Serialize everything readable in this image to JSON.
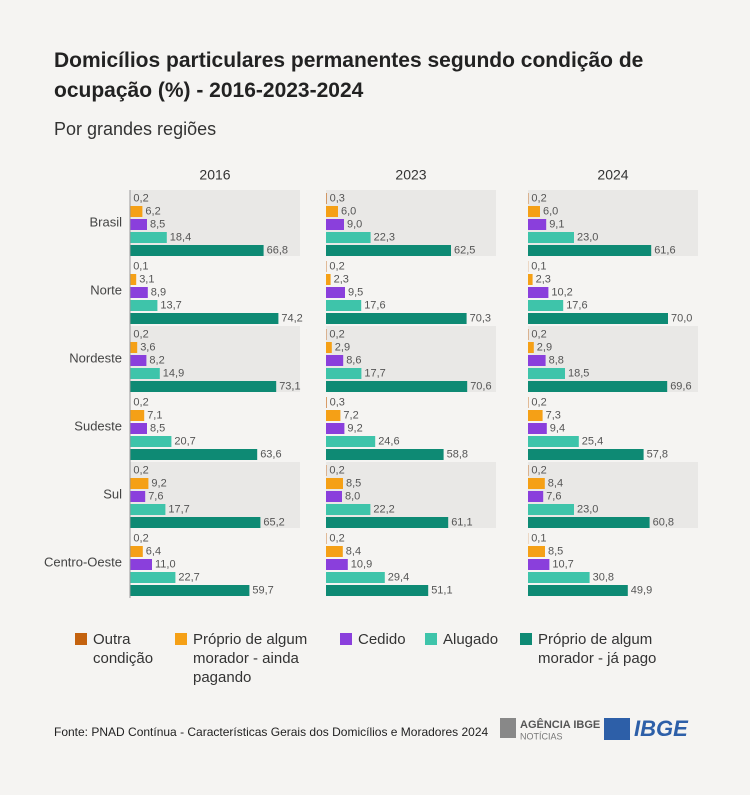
{
  "chart_data": {
    "type": "bar",
    "orientation": "horizontal",
    "title": "Domicílios particulares permanentes segundo condição de ocupação (%) - 2016-2023-2024",
    "subtitle": "Por grandes regiões",
    "panels": [
      "2016",
      "2023",
      "2024"
    ],
    "categories": [
      "Brasil",
      "Norte",
      "Nordeste",
      "Sudeste",
      "Sul",
      "Centro-Oeste"
    ],
    "series": [
      {
        "name": "Outra condição",
        "color": "#c4620e",
        "values": [
          [
            0.2,
            0.1,
            0.2,
            0.2,
            0.2,
            0.2
          ],
          [
            0.3,
            0.2,
            0.2,
            0.3,
            0.2,
            0.2
          ],
          [
            0.2,
            0.1,
            0.2,
            0.2,
            0.2,
            0.1
          ]
        ],
        "value_labels": [
          [
            "0,2",
            "0,1",
            "0,2",
            "0,2",
            "0,2",
            "0,2"
          ],
          [
            "0,3",
            "0,2",
            "0,2",
            "0,3",
            "0,2",
            "0,2"
          ],
          [
            "0,2",
            "0,1",
            "0,2",
            "0,2",
            "0,2",
            "0,1"
          ]
        ]
      },
      {
        "name": "Próprio de algum morador - ainda pagando",
        "color": "#f5a016",
        "values": [
          [
            6.2,
            3.1,
            3.6,
            7.1,
            9.2,
            6.4
          ],
          [
            6.0,
            2.3,
            2.9,
            7.2,
            8.5,
            8.4
          ],
          [
            6.0,
            2.3,
            2.9,
            7.3,
            8.4,
            8.5
          ]
        ],
        "value_labels": [
          [
            "6,2",
            "3,1",
            "3,6",
            "7,1",
            "9,2",
            "6,4"
          ],
          [
            "6,0",
            "2,3",
            "2,9",
            "7,2",
            "8,5",
            "8,4"
          ],
          [
            "6,0",
            "2,3",
            "2,9",
            "7,3",
            "8,4",
            "8,5"
          ]
        ]
      },
      {
        "name": "Cedido",
        "color": "#8a3fdc",
        "values": [
          [
            8.5,
            8.9,
            8.2,
            8.5,
            7.6,
            11.0
          ],
          [
            9.0,
            9.5,
            8.6,
            9.2,
            8.0,
            10.9
          ],
          [
            9.1,
            10.2,
            8.8,
            9.4,
            7.6,
            10.7
          ]
        ],
        "value_labels": [
          [
            "8,5",
            "8,9",
            "8,2",
            "8,5",
            "7,6",
            "11,0"
          ],
          [
            "9,0",
            "9,5",
            "8,6",
            "9,2",
            "8,0",
            "10,9"
          ],
          [
            "9,1",
            "10,2",
            "8,8",
            "9,4",
            "7,6",
            "10,7"
          ]
        ]
      },
      {
        "name": "Alugado",
        "color": "#3ec4aa",
        "values": [
          [
            18.4,
            13.7,
            14.9,
            20.7,
            17.7,
            22.7
          ],
          [
            22.3,
            17.6,
            17.7,
            24.6,
            22.2,
            29.4
          ],
          [
            23.0,
            17.6,
            18.5,
            25.4,
            23.0,
            30.8
          ]
        ],
        "value_labels": [
          [
            "18,4",
            "13,7",
            "14,9",
            "20,7",
            "17,7",
            "22,7"
          ],
          [
            "22,3",
            "17,6",
            "17,7",
            "24,6",
            "22,2",
            "29,4"
          ],
          [
            "23,0",
            "17,6",
            "18,5",
            "25,4",
            "23,0",
            "30,8"
          ]
        ]
      },
      {
        "name": "Próprio de algum morador - já pago",
        "color": "#0e8a74",
        "values": [
          [
            66.8,
            74.2,
            73.1,
            63.6,
            65.2,
            59.7
          ],
          [
            62.5,
            70.3,
            70.6,
            58.8,
            61.1,
            51.1
          ],
          [
            61.6,
            70.0,
            69.6,
            57.8,
            60.8,
            49.9
          ]
        ],
        "value_labels": [
          [
            "66,8",
            "74,2",
            "73,1",
            "63,6",
            "65,2",
            "59,7"
          ],
          [
            "62,5",
            "70,3",
            "70,6",
            "58,8",
            "61,1",
            "51,1"
          ],
          [
            "61,6",
            "70,0",
            "69,6",
            "57,8",
            "60,8",
            "49,9"
          ]
        ]
      }
    ]
  },
  "footer": {
    "source": "Fonte: PNAD Contínua - Características Gerais dos Domicílios e Moradores 2024",
    "agency": "AGÊNCIA IBGE",
    "agency_sub": "NOTÍCIAS",
    "logo": "IBGE"
  }
}
